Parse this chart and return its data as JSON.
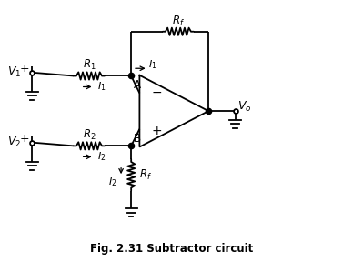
{
  "title": "Fig. 2.31 Subtractor circuit",
  "bg_color": "#ffffff",
  "line_color": "#000000",
  "text_color": "#000000",
  "fig_width": 3.77,
  "fig_height": 2.87,
  "dpi": 100
}
